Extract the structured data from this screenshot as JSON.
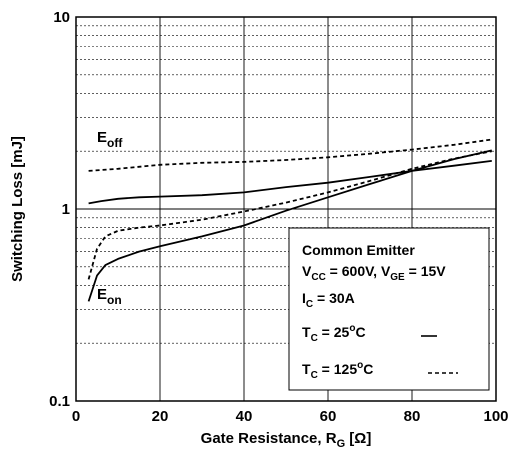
{
  "chart_data": {
    "type": "line",
    "title": "",
    "xlabel": "Gate Resistance, R",
    "xlabel_sub": "G",
    "xlabel_unit": "[Ω]",
    "ylabel": "Switching Loss [mJ]",
    "xlim": [
      0,
      100
    ],
    "ylim": [
      0.1,
      10
    ],
    "yscale": "log",
    "grid": true,
    "x_ticks": [
      "0",
      "20",
      "40",
      "60",
      "80",
      "100"
    ],
    "y_ticks": [
      "0.1",
      "1",
      "10"
    ],
    "legend": {
      "placement": "bottom-right",
      "title": "Common Emitter",
      "line2": {
        "v1": "V",
        "v1_sub": "CC",
        "v1_val": " = 600V, V",
        "v2_sub": "GE",
        "v2_val": " = 15V"
      },
      "line3": {
        "main": "I",
        "sub": "C",
        "val": " = 30A"
      },
      "line4": {
        "main": "T",
        "sub": "C",
        "val": " = 25",
        "sup": "o",
        "unit": "C"
      },
      "line5": {
        "main": "T",
        "sub": "C",
        "val": " = 125",
        "sup": "o",
        "unit": "C"
      }
    },
    "curve_labels": {
      "eoff": {
        "main": "E",
        "sub": "off"
      },
      "eon": {
        "main": "E",
        "sub": "on"
      }
    },
    "series": [
      {
        "curve": "eoff",
        "temp": "25",
        "style": "solid",
        "x": [
          3,
          6,
          10,
          15,
          20,
          30,
          40,
          50,
          60,
          70,
          80,
          90,
          99
        ],
        "y": [
          1.07,
          1.1,
          1.13,
          1.15,
          1.16,
          1.18,
          1.22,
          1.3,
          1.37,
          1.47,
          1.58,
          1.68,
          1.78
        ]
      },
      {
        "curve": "eoff",
        "temp": "125",
        "style": "dashed",
        "x": [
          3,
          10,
          20,
          30,
          40,
          50,
          60,
          70,
          80,
          90,
          99
        ],
        "y": [
          1.58,
          1.62,
          1.7,
          1.74,
          1.76,
          1.8,
          1.86,
          1.94,
          2.04,
          2.16,
          2.3
        ]
      },
      {
        "curve": "eon",
        "temp": "25",
        "style": "solid",
        "x": [
          3,
          5,
          7,
          10,
          15,
          20,
          30,
          40,
          50,
          60,
          70,
          80,
          90,
          99
        ],
        "y": [
          0.33,
          0.45,
          0.51,
          0.55,
          0.6,
          0.64,
          0.72,
          0.82,
          0.98,
          1.15,
          1.35,
          1.58,
          1.82,
          2.02
        ]
      },
      {
        "curve": "eon",
        "temp": "125",
        "style": "dashed",
        "x": [
          3,
          5,
          7,
          10,
          15,
          20,
          30,
          40,
          50,
          60,
          70,
          80,
          90,
          99
        ],
        "y": [
          0.43,
          0.62,
          0.72,
          0.77,
          0.8,
          0.82,
          0.88,
          0.97,
          1.08,
          1.22,
          1.4,
          1.62,
          1.83,
          2.0
        ]
      }
    ]
  }
}
